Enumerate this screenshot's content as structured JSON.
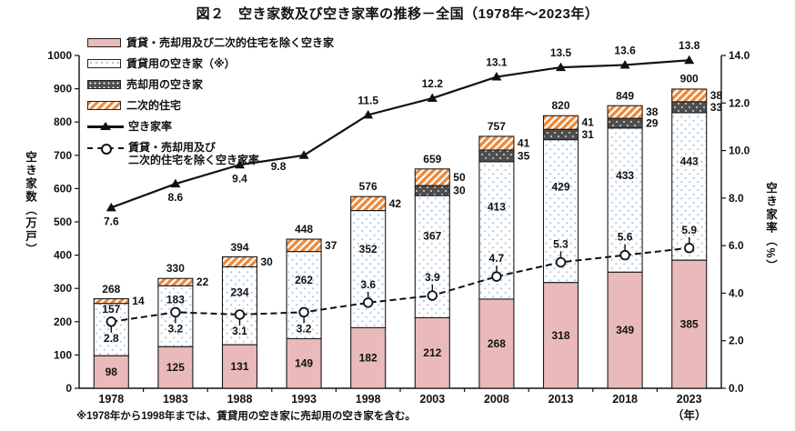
{
  "title": "図２　空き家数及び空き家率の推移－全国（1978年～2023年）",
  "footnote": "※1978年から1998年までは、賃貸用の空き家に売却用の空き家を含む。",
  "legend": [
    {
      "label": "賃貸・売却用及び二次的住宅を除く空き家",
      "style": "pink"
    },
    {
      "label": "賃貸用の空き家（※）",
      "style": "dots-white"
    },
    {
      "label": "売却用の空き家",
      "style": "dots-dark"
    },
    {
      "label": "二次的住宅",
      "style": "stripes-orange"
    },
    {
      "label": "空き家率",
      "style": "line-solid-triangle"
    },
    {
      "label": "賃貸・売却用及び",
      "label2": "二次的住宅を除く空き家率",
      "style": "line-dashed-circle"
    }
  ],
  "colors": {
    "bar_pink": "#eab9b9",
    "dot_blue": "#9fc2e0",
    "bar_dark": "#4f4f4f",
    "stripe_orange": "#ed8a3c",
    "line_black": "#111111"
  },
  "chart_data": {
    "type": "bar",
    "subtype": "stacked-bar-with-lines",
    "categories": [
      "1978",
      "1983",
      "1988",
      "1993",
      "1998",
      "2003",
      "2008",
      "2013",
      "2018",
      "2023"
    ],
    "x_axis_unit": "（年）",
    "bar_series": [
      {
        "name": "賃貸・売却用及び二次的住宅を除く空き家",
        "style": "pink",
        "values": [
          98,
          125,
          131,
          149,
          182,
          212,
          268,
          318,
          349,
          385
        ],
        "label_pos": "inside"
      },
      {
        "name": "賃貸用の空き家（※）",
        "style": "dots-white",
        "values": [
          157,
          183,
          234,
          262,
          352,
          367,
          413,
          429,
          433,
          443
        ],
        "label_pos": "inside"
      },
      {
        "name": "売却用の空き家",
        "style": "dots-dark",
        "values": [
          0,
          0,
          0,
          0,
          0,
          30,
          35,
          31,
          29,
          33
        ],
        "label_pos": "side"
      },
      {
        "name": "二次的住宅",
        "style": "stripes-orange",
        "values": [
          14,
          22,
          30,
          37,
          42,
          50,
          41,
          41,
          38,
          38
        ],
        "label_pos": "side"
      }
    ],
    "bar_totals": [
      268,
      330,
      394,
      448,
      576,
      659,
      757,
      820,
      849,
      900
    ],
    "line_series": [
      {
        "name": "空き家率",
        "marker": "triangle",
        "dashed": false,
        "leader": false,
        "values": [
          7.6,
          8.6,
          9.4,
          9.8,
          11.5,
          12.2,
          13.1,
          13.5,
          13.6,
          13.8
        ],
        "label_side": [
          "below",
          "below",
          "below",
          "below-left",
          "above",
          "above",
          "above",
          "above",
          "above",
          "above"
        ]
      },
      {
        "name": "賃貸・売却用及び二次的住宅を除く空き家率",
        "marker": "circle",
        "dashed": true,
        "leader": true,
        "values": [
          2.8,
          3.2,
          3.1,
          3.2,
          3.6,
          3.9,
          4.7,
          5.3,
          5.6,
          5.9
        ],
        "label_side": [
          "below",
          "below",
          "below",
          "below",
          "above",
          "above",
          "above",
          "above",
          "above",
          "above"
        ]
      }
    ],
    "left_axis": {
      "label": "空き家数（万戸）",
      "min": 0,
      "max": 1000,
      "step": 100
    },
    "right_axis": {
      "label": "空き家率（%）",
      "min": 0,
      "max": 14,
      "step": 2
    },
    "grid": false,
    "legend_position": "top-left-inside"
  }
}
